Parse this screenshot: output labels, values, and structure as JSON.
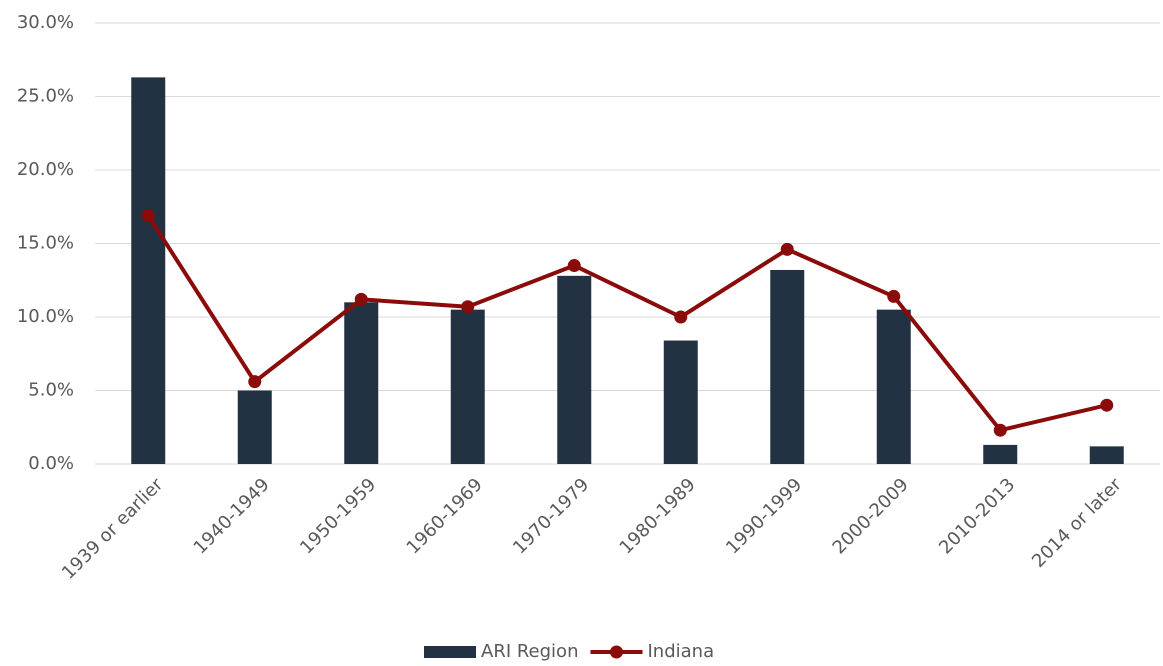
{
  "chart_data": {
    "type": "bar",
    "categories": [
      "1939 or earlier",
      "1940-1949",
      "1950-1959",
      "1960-1969",
      "1970-1979",
      "1980-1989",
      "1990-1999",
      "2000-2009",
      "2010-2013",
      "2014 or later"
    ],
    "series": [
      {
        "name": "ARI Region",
        "type": "bar",
        "color": "#223243",
        "values": [
          26.3,
          5.0,
          11.0,
          10.5,
          12.8,
          8.4,
          13.2,
          10.5,
          1.3,
          1.2
        ]
      },
      {
        "name": "Indiana",
        "type": "line",
        "color": "#8b0a0a",
        "values": [
          16.9,
          5.6,
          11.2,
          10.7,
          13.5,
          10.0,
          14.6,
          11.4,
          2.3,
          4.0
        ]
      }
    ],
    "ylim": [
      0,
      30
    ],
    "yticks": [
      {
        "value": 0,
        "label": "0.0%"
      },
      {
        "value": 5,
        "label": "5.0%"
      },
      {
        "value": 10,
        "label": "10.0%"
      },
      {
        "value": 15,
        "label": "15.0%"
      },
      {
        "value": 20,
        "label": "20.0%"
      },
      {
        "value": 25,
        "label": "25.0%"
      },
      {
        "value": 30,
        "label": "30.0%"
      }
    ],
    "grid": true,
    "legend": "bottom"
  }
}
